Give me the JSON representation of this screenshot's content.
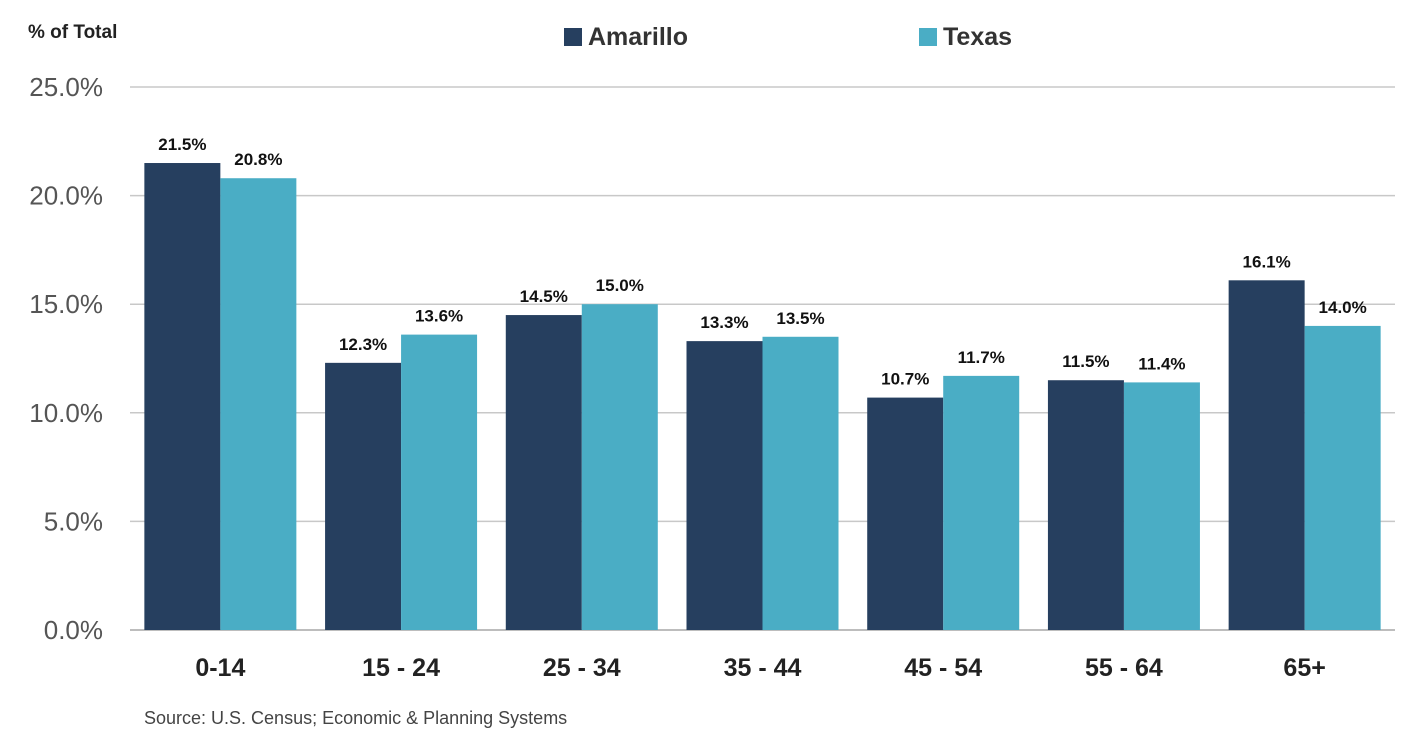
{
  "chart_data": {
    "type": "bar",
    "ylabel": "% of Total",
    "categories": [
      "0-14",
      "15 - 24",
      "25 - 34",
      "35 - 44",
      "45 - 54",
      "55 - 64",
      "65+"
    ],
    "series": [
      {
        "name": "Amarillo",
        "color": "#263f5f",
        "values": [
          21.5,
          12.3,
          14.5,
          13.3,
          10.7,
          11.5,
          16.1
        ],
        "labels": [
          "21.5%",
          "12.3%",
          "14.5%",
          "13.3%",
          "10.7%",
          "11.5%",
          "16.1%"
        ]
      },
      {
        "name": "Texas",
        "color": "#4aadc5",
        "values": [
          20.8,
          13.6,
          15.0,
          13.5,
          11.7,
          11.4,
          14.0
        ],
        "labels": [
          "20.8%",
          "13.6%",
          "15.0%",
          "13.5%",
          "11.7%",
          "11.4%",
          "14.0%"
        ]
      }
    ],
    "ylim": [
      0,
      25
    ],
    "yticks": [
      "0.0%",
      "5.0%",
      "10.0%",
      "15.0%",
      "20.0%",
      "25.0%"
    ],
    "ytick_values": [
      0,
      5,
      10,
      15,
      20,
      25
    ],
    "grid": true,
    "legend": "top-center",
    "source": "Source: U.S. Census; Economic & Planning Systems"
  }
}
